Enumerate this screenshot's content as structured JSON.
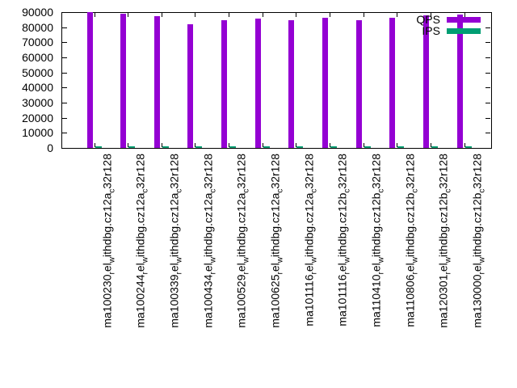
{
  "chart_data": {
    "type": "bar",
    "bar_layout": "clustered",
    "title": "",
    "xlabel": "",
    "ylabel": "",
    "categories": [
      "ma100230_rel_withdbg.cz12a_c32r128",
      "ma100244_rel_withdbg.cz12a_c32r128",
      "ma100339_rel_withdbg.cz12a_c32r128",
      "ma100434_rel_withdbg.cz12a_c32r128",
      "ma100529_rel_withdbg.cz12a_c32r128",
      "ma100625_rel_withdbg.cz12a_c32r128",
      "ma101116_rel_withdbg.cz12a_c32r128",
      "ma101116_rel_withdbg.cz12b_c32r128",
      "ma110410_rel_withdbg.cz12b_c32r128",
      "ma110806_rel_withdbg.cz12b_c32r128",
      "ma120301_rel_withdbg.cz12b_c32r128",
      "ma130000_rel_withdbg.cz12b_c32r128"
    ],
    "series": [
      {
        "name": "QPS",
        "color": "#9400d3",
        "values": [
          89900,
          88700,
          87100,
          82100,
          84900,
          85700,
          84900,
          86200,
          84800,
          86200,
          87600,
          88600
        ]
      },
      {
        "name": "IPS",
        "color": "#009e73",
        "values": [
          1100,
          1100,
          1100,
          1100,
          1100,
          1100,
          1100,
          1100,
          1100,
          1100,
          1100,
          1100
        ]
      }
    ],
    "ylim": [
      0,
      90000
    ],
    "yticks": [
      0,
      10000,
      20000,
      30000,
      40000,
      50000,
      60000,
      70000,
      80000,
      90000
    ],
    "grid": false,
    "legend_position": "top-right-inside"
  }
}
